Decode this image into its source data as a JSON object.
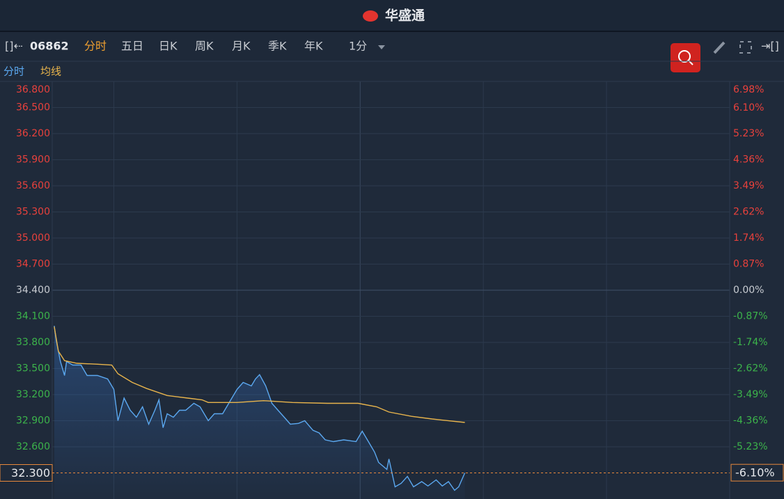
{
  "header": {
    "title": "华盛通"
  },
  "toolbar": {
    "code": "06862",
    "tabs": [
      "分时",
      "五日",
      "日K",
      "周K",
      "月K",
      "季K",
      "年K"
    ],
    "interval": "1分"
  },
  "chart_data": {
    "type": "line",
    "grid": true,
    "series": [
      {
        "name": "分时",
        "color": "#5ba8f0",
        "x": [
          1,
          2,
          4,
          6,
          7,
          10,
          14,
          17,
          22,
          27,
          30,
          32,
          35,
          38,
          41,
          44,
          47,
          50,
          52,
          54,
          56,
          59,
          62,
          65,
          69,
          72,
          76,
          79,
          83,
          87,
          90,
          93,
          97,
          99,
          101,
          104,
          107,
          110,
          113,
          116,
          120,
          123,
          127,
          130,
          133,
          137,
          142,
          148,
          151,
          154,
          157,
          159,
          163,
          164,
          167,
          170,
          173,
          176,
          180,
          183,
          187,
          190,
          193,
          196,
          198,
          201
        ],
        "values": [
          33.99,
          33.82,
          33.58,
          33.42,
          33.58,
          33.54,
          33.54,
          33.42,
          33.42,
          33.38,
          33.26,
          32.9,
          33.16,
          33.02,
          32.94,
          33.06,
          32.86,
          33.02,
          33.14,
          32.82,
          32.98,
          32.94,
          33.02,
          33.02,
          33.1,
          33.06,
          32.9,
          32.98,
          32.98,
          33.14,
          33.26,
          33.34,
          33.3,
          33.38,
          33.43,
          33.3,
          33.1,
          33.02,
          32.94,
          32.86,
          32.87,
          32.9,
          32.79,
          32.76,
          32.68,
          32.66,
          32.68,
          32.66,
          32.78,
          32.66,
          32.54,
          32.42,
          32.34,
          32.46,
          32.14,
          32.18,
          32.26,
          32.14,
          32.2,
          32.15,
          32.22,
          32.15,
          32.2,
          32.1,
          32.14,
          32.3
        ]
      },
      {
        "name": "均线",
        "color": "#e8b44c",
        "x": [
          1,
          3,
          6,
          12,
          22,
          29,
          32,
          39,
          46,
          56,
          66,
          73,
          76,
          90,
          103,
          117,
          134,
          149,
          158,
          164,
          175,
          185,
          201
        ],
        "values": [
          33.98,
          33.7,
          33.59,
          33.56,
          33.55,
          33.54,
          33.44,
          33.34,
          33.27,
          33.19,
          33.16,
          33.14,
          33.11,
          33.11,
          33.13,
          33.11,
          33.1,
          33.1,
          33.06,
          33.0,
          32.95,
          32.92,
          32.88
        ]
      }
    ],
    "xlim": [
      0,
      330
    ],
    "xticks": [
      30,
      90,
      150,
      210,
      270
    ],
    "ylim": [
      32,
      36.8
    ],
    "yticks": [
      {
        "value": 36.8,
        "label": "36.800"
      },
      {
        "value": 36.5,
        "label": "36.500"
      },
      {
        "value": 36.2,
        "label": "36.200"
      },
      {
        "value": 35.9,
        "label": "35.900"
      },
      {
        "value": 35.6,
        "label": "35.600"
      },
      {
        "value": 35.3,
        "label": "35.300"
      },
      {
        "value": 35,
        "label": "35.000"
      },
      {
        "value": 34.7,
        "label": "34.700"
      },
      {
        "value": 34.4,
        "label": "34.400"
      },
      {
        "value": 34.1,
        "label": "34.100"
      },
      {
        "value": 33.8,
        "label": "33.800"
      },
      {
        "value": 33.5,
        "label": "33.500"
      },
      {
        "value": 33.2,
        "label": "33.200"
      },
      {
        "value": 32.9,
        "label": "32.900"
      },
      {
        "value": 32.6,
        "label": "32.600"
      }
    ],
    "y2lim": [
      -6.98,
      6.98
    ],
    "y2ticks": [
      {
        "value": 6.98,
        "label": "6.98%"
      },
      {
        "value": 6.1,
        "label": "6.10%"
      },
      {
        "value": 5.23,
        "label": "5.23%"
      },
      {
        "value": 4.36,
        "label": "4.36%"
      },
      {
        "value": 3.49,
        "label": "3.49%"
      },
      {
        "value": 2.62,
        "label": "2.62%"
      },
      {
        "value": 1.74,
        "label": "1.74%"
      },
      {
        "value": 0.87,
        "label": "0.87%"
      },
      {
        "value": 0,
        "label": "0.00%"
      },
      {
        "value": -0.87,
        "label": "-0.87%"
      },
      {
        "value": -1.74,
        "label": "-1.74%"
      },
      {
        "value": -2.62,
        "label": "-2.62%"
      },
      {
        "value": -3.49,
        "label": "-3.49%"
      },
      {
        "value": -4.36,
        "label": "-4.36%"
      },
      {
        "value": -5.23,
        "label": "-5.23%"
      }
    ],
    "last_price": {
      "value": 32.3,
      "label": "32.300"
    },
    "last_change": {
      "value": -6.1,
      "label": "-6.10%"
    }
  }
}
